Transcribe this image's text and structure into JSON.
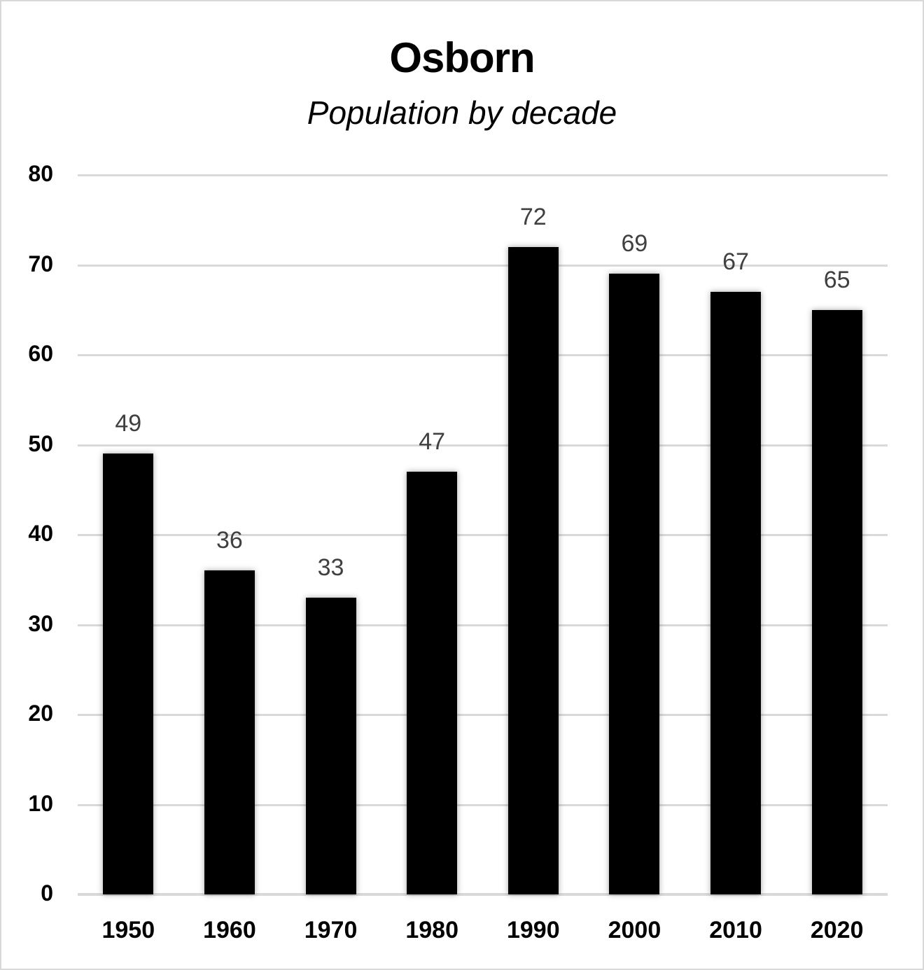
{
  "chart_data": {
    "type": "bar",
    "title": "Osborn",
    "subtitle": "Population by decade",
    "xlabel": "",
    "ylabel": "",
    "categories": [
      "1950",
      "1960",
      "1970",
      "1980",
      "1990",
      "2000",
      "2010",
      "2020"
    ],
    "values": [
      49,
      36,
      33,
      47,
      72,
      69,
      67,
      65
    ],
    "ylim": [
      0,
      80
    ],
    "yticks": [
      "0",
      "10",
      "20",
      "30",
      "40",
      "50",
      "60",
      "70",
      "80"
    ],
    "grid": true,
    "legend": "none",
    "data_labels": true,
    "bar_color": "#000000",
    "gridline_color": "#d9d9d9",
    "data_label_color": "#404040"
  }
}
